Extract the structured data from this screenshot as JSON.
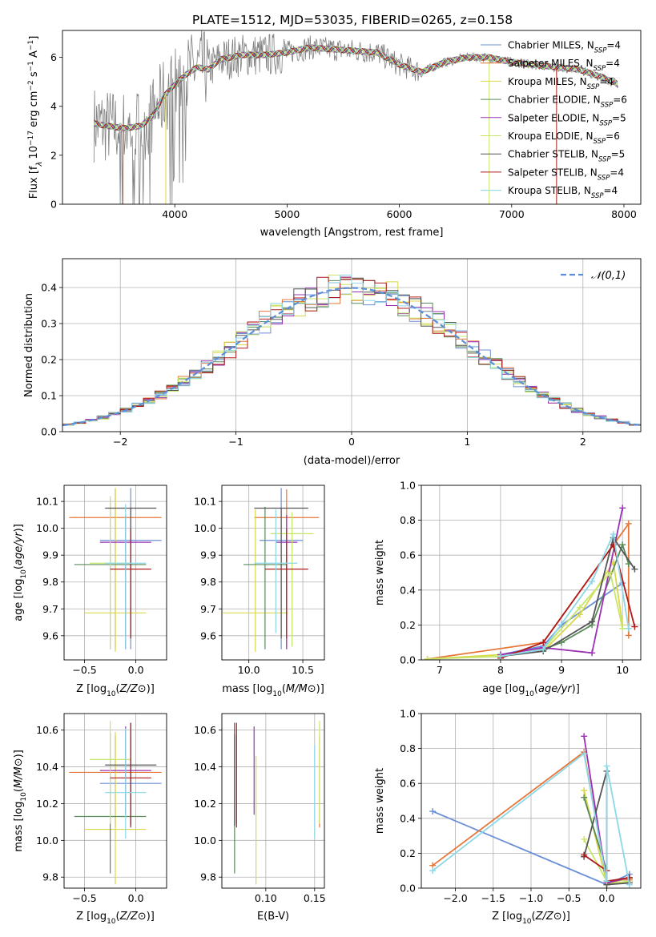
{
  "figure": {
    "title": "PLATE=1512, MJD=53035, FIBERID=0265, z=0.158"
  },
  "models": [
    {
      "name": "Chabrier MILES, N$_{SSP}$=4",
      "label_base": "Chabrier MILES, N",
      "label_tail": "=4",
      "color": "#6b8fd6"
    },
    {
      "name": "Salpeter MILES, N$_{SSP}$=4",
      "label_base": "Salpeter MILES, N",
      "label_tail": "=4",
      "color": "#e6773a"
    },
    {
      "name": "Kroupa MILES, N$_{SSP}$=4",
      "label_base": "Kroupa MILES, N",
      "label_tail": "=4",
      "color": "#d8d84a"
    },
    {
      "name": "Chabrier ELODIE, N$_{SSP}$=6",
      "label_base": "Chabrier ELODIE, N",
      "label_tail": "=6",
      "color": "#5a8a5a"
    },
    {
      "name": "Salpeter ELODIE, N$_{SSP}$=5",
      "label_base": "Salpeter ELODIE, N",
      "label_tail": "=5",
      "color": "#9b30b4"
    },
    {
      "name": "Kroupa ELODIE, N$_{SSP}$=6",
      "label_base": "Kroupa ELODIE, N",
      "label_tail": "=6",
      "color": "#c8e66a"
    },
    {
      "name": "Chabrier STELIB, N$_{SSP}$=5",
      "label_base": "Chabrier STELIB, N",
      "label_tail": "=5",
      "color": "#555555"
    },
    {
      "name": "Salpeter STELIB, N$_{SSP}$=4",
      "label_base": "Salpeter STELIB, N",
      "label_tail": "=4",
      "color": "#b01a1a"
    },
    {
      "name": "Kroupa STELIB, N$_{SSP}$=4",
      "label_base": "Kroupa STELIB, N",
      "label_tail": "=4",
      "color": "#8cd8e6"
    }
  ],
  "legend_subscript": "SSP",
  "chart_data": [
    {
      "id": "spectrum",
      "type": "line",
      "xlabel": "wavelength [Angstrom, rest frame]",
      "ylabel": "Flux [f_λ 10^-17 erg cm^-2 s^-1 A^-1]",
      "ylabel_parts": {
        "a": "Flux [f",
        "b": "λ",
        "c": "10",
        "d": "−17",
        "e": " erg cm",
        "f": "−2",
        "g": " s",
        "h": "−1",
        "i": " A",
        "j": "−1",
        "k": "]"
      },
      "xlim": [
        3000,
        8150
      ],
      "ylim": [
        0,
        7.1
      ],
      "xticks": [
        4000,
        5000,
        6000,
        7000,
        8000
      ],
      "yticks": [
        0,
        2,
        4,
        6
      ],
      "data_color": "#808080",
      "continuum": {
        "x": [
          3280,
          3400,
          3550,
          3700,
          3800,
          3900,
          4000,
          4100,
          4200,
          4300,
          4400,
          4600,
          4800,
          5000,
          5200,
          5500,
          5800,
          6000,
          6200,
          6400,
          6600,
          6800,
          7000,
          7200,
          7400,
          7600,
          7800,
          7950
        ],
        "y": [
          3.3,
          3.2,
          3.1,
          3.2,
          3.6,
          4.4,
          4.9,
          5.3,
          5.6,
          5.5,
          5.9,
          6.1,
          6.1,
          6.2,
          6.4,
          6.3,
          6.2,
          5.7,
          5.4,
          5.8,
          6.0,
          6.0,
          5.8,
          5.7,
          5.6,
          5.5,
          5.2,
          4.9
        ]
      },
      "legend_position": "right"
    },
    {
      "id": "residuals",
      "type": "histogram",
      "xlabel": "(data-model)/error",
      "ylabel": "Normed distribution",
      "xlim": [
        -2.5,
        2.5
      ],
      "ylim": [
        0,
        0.48
      ],
      "xticks": [
        -2,
        -1,
        0,
        1,
        2
      ],
      "yticks": [
        0.0,
        0.1,
        0.2,
        0.3,
        0.4
      ],
      "bin_width": 0.1,
      "reference_curve": {
        "label": "𝒩(0,1)",
        "color": "#5b8fd9",
        "style": "dashed"
      },
      "legend_position": "top-right"
    },
    {
      "id": "age-vs-Z",
      "type": "scatter",
      "xlabel": "Z [log10(Z/Z⊙)]",
      "ylabel": "age  [log10(age/yr)]",
      "xlim": [
        -0.7,
        0.3
      ],
      "ylim": [
        9.51,
        10.16
      ],
      "xticks": [
        -0.5,
        0.0
      ],
      "yticks": [
        9.6,
        9.7,
        9.8,
        9.9,
        10.0,
        10.1
      ],
      "points": [
        {
          "x": -0.05,
          "xerr": 0.3,
          "y": 9.955,
          "yerr": [
            0.405,
            0.195
          ]
        },
        {
          "x": -0.2,
          "xerr": 0.45,
          "y": 10.04,
          "yerr": [
            0.49,
            0.105
          ]
        },
        {
          "x": -0.2,
          "xerr": 0.3,
          "y": 9.685,
          "yerr": [
            0.145,
            0.465
          ]
        },
        {
          "x": -0.25,
          "xerr": 0.35,
          "y": 9.865,
          "yerr": [
            0.315,
            0.245
          ]
        },
        {
          "x": -0.1,
          "xerr": 0.25,
          "y": 9.948,
          "yerr": [
            0.398,
            0.102
          ]
        },
        {
          "x": -0.25,
          "xerr": 0.2,
          "y": 9.87,
          "yerr": [
            0.32,
            0.25
          ]
        },
        {
          "x": -0.05,
          "xerr": 0.25,
          "y": 10.075,
          "yerr": [
            0.485,
            0.0
          ]
        },
        {
          "x": -0.05,
          "xerr": 0.2,
          "y": 9.848,
          "yerr": [
            0.258,
            0.15
          ]
        },
        {
          "x": -0.1,
          "xerr": 0.2,
          "y": 9.87,
          "yerr": [
            0.32,
            0.22
          ]
        }
      ]
    },
    {
      "id": "age-vs-mass",
      "type": "scatter",
      "xlabel": "mass [log10(M/M⊙)]",
      "ylabel": "",
      "xlim": [
        9.75,
        10.7
      ],
      "ylim": [
        9.51,
        10.16
      ],
      "xticks": [
        10.0,
        10.5
      ],
      "yticks": [
        9.6,
        9.7,
        9.8,
        9.9,
        10.0,
        10.1
      ],
      "points": [
        {
          "x": 10.3,
          "xerr": 0.2,
          "y": 9.955,
          "yerr": [
            0.405,
            0.195
          ]
        },
        {
          "x": 10.35,
          "xerr": 0.3,
          "y": 10.04,
          "yerr": [
            0.49,
            0.105
          ]
        },
        {
          "x": 10.06,
          "xerr": 0.3,
          "y": 9.685,
          "yerr": [
            0.145,
            0.385
          ]
        },
        {
          "x": 10.15,
          "xerr": 0.2,
          "y": 9.865,
          "yerr": [
            0.315,
            0.215
          ]
        },
        {
          "x": 10.35,
          "xerr": 0.1,
          "y": 9.948,
          "yerr": [
            0.398,
            0.102
          ]
        },
        {
          "x": 10.4,
          "xerr": 0.2,
          "y": 9.98,
          "yerr": [
            0.42,
            0.08
          ]
        },
        {
          "x": 10.3,
          "xerr": 0.25,
          "y": 10.075,
          "yerr": [
            0.485,
            0.0
          ]
        },
        {
          "x": 10.35,
          "xerr": 0.2,
          "y": 9.848,
          "yerr": [
            0.258,
            0.15
          ]
        },
        {
          "x": 10.25,
          "xerr": 0.2,
          "y": 9.87,
          "yerr": [
            0.26,
            0.2
          ]
        }
      ]
    },
    {
      "id": "weight-vs-age",
      "type": "line",
      "xlabel": "age  [log10(age/yr)]",
      "ylabel": "mass weight",
      "xlim": [
        6.7,
        10.3
      ],
      "ylim": [
        0.0,
        1.0
      ],
      "xticks": [
        7,
        8,
        9,
        10
      ],
      "yticks": [
        0.0,
        0.2,
        0.4,
        0.6,
        0.8,
        1.0
      ],
      "series": [
        {
          "x": [
            8.0,
            8.7,
            9.0,
            10.0
          ],
          "y": [
            0.03,
            0.08,
            0.2,
            0.44
          ]
        },
        {
          "x": [
            6.8,
            8.7,
            10.1,
            10.1
          ],
          "y": [
            0.005,
            0.1,
            0.78,
            0.14
          ]
        },
        {
          "x": [
            6.8,
            8.0,
            8.7,
            9.3,
            9.85,
            10.0
          ],
          "y": [
            0.005,
            0.03,
            0.05,
            0.26,
            0.56,
            0.2
          ]
        },
        {
          "x": [
            8.0,
            8.7,
            9.0,
            9.5,
            10.0,
            10.1
          ],
          "y": [
            0.02,
            0.06,
            0.1,
            0.2,
            0.66,
            0.55
          ]
        },
        {
          "x": [
            8.0,
            8.7,
            9.5,
            10.0
          ],
          "y": [
            0.03,
            0.07,
            0.04,
            0.87
          ]
        },
        {
          "x": [
            6.8,
            8.0,
            8.7,
            9.3,
            9.8,
            10.0
          ],
          "y": [
            0.005,
            0.02,
            0.06,
            0.3,
            0.5,
            0.18
          ]
        },
        {
          "x": [
            8.0,
            8.7,
            9.5,
            9.85,
            10.2
          ],
          "y": [
            0.02,
            0.05,
            0.22,
            0.7,
            0.52
          ]
        },
        {
          "x": [
            8.0,
            8.7,
            9.85,
            10.2
          ],
          "y": [
            0.01,
            0.1,
            0.66,
            0.19
          ]
        },
        {
          "x": [
            8.0,
            8.7,
            9.5,
            9.85,
            10.1
          ],
          "y": [
            0.02,
            0.06,
            0.45,
            0.72,
            0.18
          ]
        }
      ]
    },
    {
      "id": "mass-vs-Z",
      "type": "scatter",
      "xlabel": "Z [log10(Z/Z⊙)]",
      "ylabel": "mass [log10(M/M⊙)]",
      "xlim": [
        -0.7,
        0.3
      ],
      "ylim": [
        9.74,
        10.69
      ],
      "xticks": [
        -0.5,
        0.0
      ],
      "yticks": [
        9.8,
        10.0,
        10.2,
        10.4,
        10.6
      ],
      "points": [
        {
          "x": -0.05,
          "xerr": 0.3,
          "y": 10.31,
          "yerr": [
            0.22,
            0.26
          ]
        },
        {
          "x": -0.2,
          "xerr": 0.45,
          "y": 10.37,
          "yerr": [
            0.3,
            0.2
          ]
        },
        {
          "x": -0.2,
          "xerr": 0.3,
          "y": 10.06,
          "yerr": [
            0.3,
            0.53
          ]
        },
        {
          "x": -0.25,
          "xerr": 0.35,
          "y": 10.13,
          "yerr": [
            0.31,
            0.45
          ]
        },
        {
          "x": -0.1,
          "xerr": 0.25,
          "y": 10.38,
          "yerr": [
            0.24,
            0.24
          ]
        },
        {
          "x": -0.25,
          "xerr": 0.2,
          "y": 10.44,
          "yerr": [
            0.35,
            0.21
          ]
        },
        {
          "x": -0.05,
          "xerr": 0.25,
          "y": 10.41,
          "yerr": [
            0.33,
            0.23
          ]
        },
        {
          "x": -0.05,
          "xerr": 0.2,
          "y": 10.34,
          "yerr": [
            0.27,
            0.3
          ]
        },
        {
          "x": -0.1,
          "xerr": 0.2,
          "y": 10.26,
          "yerr": [
            0.25,
            0.35
          ]
        }
      ]
    },
    {
      "id": "mass-vs-ebv",
      "type": "scatter",
      "xlabel": "E(B-V)",
      "ylabel": "",
      "xlim": [
        0.055,
        0.16
      ],
      "ylim": [
        9.74,
        10.69
      ],
      "xticks": [
        0.1,
        0.15
      ],
      "yticks": [
        9.8,
        10.0,
        10.2,
        10.4,
        10.6
      ],
      "points": [
        {
          "x": 0.07,
          "xerr": 0,
          "y": 10.31,
          "yerr": [
            0.22,
            0.26
          ]
        },
        {
          "x": 0.155,
          "xerr": 0,
          "y": 10.37,
          "yerr": [
            0.3,
            0.2
          ]
        },
        {
          "x": 0.09,
          "xerr": 0,
          "y": 10.06,
          "yerr": [
            0.3,
            0.4
          ]
        },
        {
          "x": 0.068,
          "xerr": 0,
          "y": 10.13,
          "yerr": [
            0.31,
            0.45
          ]
        },
        {
          "x": 0.088,
          "xerr": 0,
          "y": 10.38,
          "yerr": [
            0.24,
            0.24
          ]
        },
        {
          "x": 0.155,
          "xerr": 0,
          "y": 10.44,
          "yerr": [
            0.35,
            0.21
          ]
        },
        {
          "x": 0.068,
          "xerr": 0,
          "y": 10.41,
          "yerr": [
            0.33,
            0.23
          ]
        },
        {
          "x": 0.07,
          "xerr": 0,
          "y": 10.34,
          "yerr": [
            0.27,
            0.3
          ]
        },
        {
          "x": 0.15,
          "xerr": 0,
          "y": 10.26,
          "yerr": [
            0.25,
            0.26
          ]
        }
      ]
    },
    {
      "id": "weight-vs-Z",
      "type": "line",
      "xlabel": "Z [log10(Z/Z⊙)]",
      "ylabel": "mass weight",
      "xlim": [
        -2.45,
        0.45
      ],
      "ylim": [
        0.0,
        1.0
      ],
      "xticks": [
        -2.0,
        -1.5,
        -1.0,
        -0.5,
        0.0
      ],
      "yticks": [
        0.0,
        0.2,
        0.4,
        0.6,
        0.8,
        1.0
      ],
      "series": [
        {
          "x": [
            -2.3,
            0.0,
            0.3,
            0.3
          ],
          "y": [
            0.44,
            0.02,
            0.08,
            0.04
          ]
        },
        {
          "x": [
            -2.3,
            -0.3,
            0.0,
            0.3
          ],
          "y": [
            0.13,
            0.78,
            0.04,
            0.05
          ]
        },
        {
          "x": [
            -0.3,
            0.0,
            0.0,
            0.3
          ],
          "y": [
            0.56,
            0.03,
            0.02,
            0.06
          ]
        },
        {
          "x": [
            -0.3,
            0.0,
            0.0,
            0.3
          ],
          "y": [
            0.52,
            0.1,
            0.02,
            0.04
          ]
        },
        {
          "x": [
            -0.3,
            0.0,
            0.0,
            0.3
          ],
          "y": [
            0.87,
            0.04,
            0.03,
            0.06
          ]
        },
        {
          "x": [
            -0.3,
            0.0,
            0.0,
            0.3
          ],
          "y": [
            0.28,
            0.04,
            0.02,
            0.04
          ]
        },
        {
          "x": [
            -0.3,
            0.0,
            0.0,
            0.3
          ],
          "y": [
            0.18,
            0.67,
            0.02,
            0.03
          ]
        },
        {
          "x": [
            -0.3,
            0.0,
            0.0,
            0.3
          ],
          "y": [
            0.19,
            0.1,
            0.04,
            0.06
          ]
        },
        {
          "x": [
            -2.3,
            -0.3,
            0.0,
            0.0,
            0.3
          ],
          "y": [
            0.1,
            0.77,
            0.04,
            0.7,
            0.02
          ]
        }
      ]
    }
  ]
}
